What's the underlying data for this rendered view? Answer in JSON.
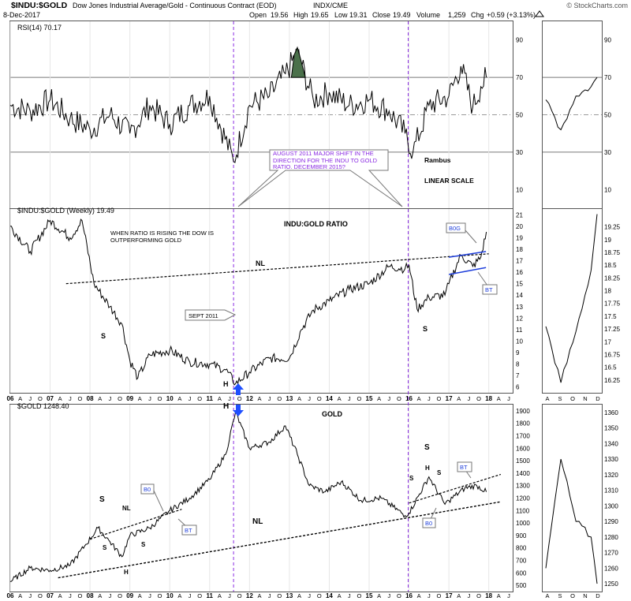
{
  "header": {
    "symbol_title": "$INDU:$GOLD",
    "description": "Dow Jones Industrial Average/Gold - Continuous Contract (EOD)",
    "exchange": "INDX/CME",
    "date": "8-Dec-2017",
    "quote": {
      "open_label": "Open",
      "open": "19.56",
      "high_label": "High",
      "high": "19.65",
      "low_label": "Low",
      "low": "19.31",
      "close_label": "Close",
      "close": "19.49",
      "volume_label": "Volume",
      "volume": "1,259",
      "chg_label": "Chg",
      "chg": "+0.59 (+3.13%)"
    },
    "watermark": "© StockCharts.com"
  },
  "colors": {
    "price": "#000000",
    "guides": "#8a2be2",
    "channel": "#1f3fdb",
    "rsi_fill": "#4a704a",
    "arrow": "#1f4fff",
    "note_text": "#8a2be2"
  },
  "chart_data": [
    {
      "type": "line",
      "panel": "rsi",
      "title": "RSI(14) 70.17",
      "ylim": [
        0,
        100
      ],
      "yticks": [
        10,
        30,
        50,
        70,
        90
      ],
      "x": [
        2006.0,
        2006.5,
        2007.0,
        2007.5,
        2008.0,
        2008.5,
        2009.0,
        2009.5,
        2010.0,
        2010.5,
        2011.0,
        2011.6,
        2012.0,
        2012.5,
        2012.9,
        2013.2,
        2013.6,
        2014.0,
        2014.5,
        2015.0,
        2015.5,
        2015.9,
        2016.1,
        2016.5,
        2017.0,
        2017.3,
        2017.6,
        2017.8,
        2017.94
      ],
      "values": [
        55,
        52,
        58,
        48,
        42,
        50,
        40,
        55,
        45,
        55,
        60,
        25,
        55,
        60,
        72,
        83,
        58,
        62,
        55,
        58,
        52,
        40,
        30,
        55,
        60,
        76,
        54,
        65,
        70
      ],
      "series_right": {
        "x": [
          2017.6,
          2017.7,
          2017.8,
          2017.9,
          2017.94
        ],
        "values": [
          58,
          42,
          60,
          65,
          70
        ]
      },
      "annotations": [
        {
          "text": "AUGUST 2011 MAJOR SHIFT IN THE DIRECTION FOR THE INDU TO GOLD RATIO. DECEMBER 2015?"
        },
        {
          "text": "Rambus"
        },
        {
          "text": "LINEAR SCALE"
        }
      ]
    },
    {
      "type": "line",
      "panel": "ratio",
      "title": "$INDU:$GOLD (Weekly) 19.49",
      "subtitle": "INDU:GOLD RATIO",
      "ylim": [
        5.5,
        21.5
      ],
      "yticks": [
        6,
        7,
        8,
        9,
        10,
        11,
        12,
        13,
        14,
        15,
        16,
        17,
        18,
        19,
        20,
        21
      ],
      "x": [
        2006.0,
        2006.5,
        2007.0,
        2007.5,
        2007.8,
        2008.1,
        2008.5,
        2008.8,
        2009.0,
        2009.2,
        2009.5,
        2010.0,
        2010.5,
        2011.0,
        2011.4,
        2011.65,
        2012.0,
        2012.5,
        2013.0,
        2013.3,
        2013.6,
        2014.0,
        2014.5,
        2015.0,
        2015.5,
        2015.9,
        2016.0,
        2016.2,
        2016.5,
        2016.9,
        2017.0,
        2017.3,
        2017.6,
        2017.8,
        2017.94
      ],
      "values": [
        20.0,
        17.8,
        20.5,
        19.0,
        20.5,
        15.0,
        13.0,
        11.5,
        8.3,
        6.8,
        8.8,
        9.2,
        8.2,
        8.0,
        7.5,
        6.3,
        7.3,
        8.5,
        8.5,
        11.0,
        12.7,
        13.5,
        14.5,
        15.0,
        16.5,
        16.3,
        16.6,
        12.8,
        13.8,
        14.0,
        15.0,
        17.5,
        16.5,
        17.3,
        19.5
      ],
      "series_right": {
        "x": [
          2017.6,
          2017.7,
          2017.8,
          2017.9,
          2017.94
        ],
        "ylim": [
          16.0,
          19.6
        ],
        "yticks": [
          16.25,
          16.5,
          16.75,
          17.0,
          17.25,
          17.5,
          17.75,
          18.0,
          18.25,
          18.5,
          18.75,
          19.0,
          19.25
        ],
        "values": [
          17.3,
          16.2,
          17.2,
          18.4,
          19.5
        ]
      },
      "annotations": [
        {
          "text": "WHEN RATIO IS RISING THE DOW IS OUTPERFORMING GOLD"
        },
        {
          "text": "NL"
        },
        {
          "text": "SEPT 2011"
        },
        {
          "text": "S"
        },
        {
          "text": "H"
        },
        {
          "text": "S"
        },
        {
          "text": "B0G"
        },
        {
          "text": "BT"
        }
      ]
    },
    {
      "type": "line",
      "panel": "gold",
      "title": "$GOLD 1248.40",
      "subtitle": "GOLD",
      "ylim": [
        450,
        1950
      ],
      "yticks": [
        500,
        600,
        700,
        800,
        900,
        1000,
        1100,
        1200,
        1300,
        1400,
        1500,
        1600,
        1700,
        1800,
        1900
      ],
      "x": [
        2006.0,
        2006.5,
        2007.0,
        2007.5,
        2007.9,
        2008.2,
        2008.5,
        2008.8,
        2009.0,
        2009.5,
        2010.0,
        2010.5,
        2011.0,
        2011.4,
        2011.65,
        2012.0,
        2012.5,
        2012.9,
        2013.2,
        2013.5,
        2013.9,
        2014.3,
        2014.8,
        2015.3,
        2015.9,
        2016.0,
        2016.5,
        2016.9,
        2017.0,
        2017.4,
        2017.7,
        2017.94
      ],
      "values": [
        530,
        640,
        620,
        660,
        830,
        960,
        850,
        730,
        900,
        960,
        1100,
        1200,
        1350,
        1550,
        1890,
        1600,
        1650,
        1780,
        1550,
        1300,
        1250,
        1330,
        1180,
        1200,
        1060,
        1080,
        1370,
        1150,
        1180,
        1280,
        1300,
        1250
      ],
      "series_right": {
        "x": [
          2017.6,
          2017.7,
          2017.8,
          2017.9,
          2017.94
        ],
        "ylim": [
          1245,
          1365
        ],
        "yticks": [
          1250,
          1260,
          1270,
          1280,
          1290,
          1300,
          1310,
          1320,
          1330,
          1340,
          1350,
          1360
        ],
        "values": [
          1260,
          1330,
          1290,
          1280,
          1250
        ]
      },
      "annotations": [
        {
          "text": "S"
        },
        {
          "text": "NL"
        },
        {
          "text": "B0"
        },
        {
          "text": "BT"
        },
        {
          "text": "S"
        },
        {
          "text": "H"
        },
        {
          "text": "S"
        },
        {
          "text": "H"
        },
        {
          "text": "NL"
        },
        {
          "text": "S"
        },
        {
          "text": "S"
        },
        {
          "text": "H"
        },
        {
          "text": "S"
        },
        {
          "text": "BT"
        },
        {
          "text": "B0"
        }
      ]
    }
  ],
  "axis": {
    "ratio_bottom_years": [
      "06",
      "07",
      "08",
      "09",
      "10",
      "11",
      "12",
      "13",
      "14",
      "15",
      "16",
      "17",
      "18"
    ],
    "gold_bottom_years": [
      "06",
      "07",
      "08",
      "09",
      "10",
      "11",
      "12",
      "13",
      "14",
      "15",
      "16",
      "17",
      "18"
    ],
    "sub_ticks": [
      "A",
      "J",
      "O"
    ],
    "tail_ticks": [
      "A",
      "J"
    ],
    "right_month_ticks": [
      "A",
      "S",
      "O",
      "N",
      "D"
    ]
  }
}
